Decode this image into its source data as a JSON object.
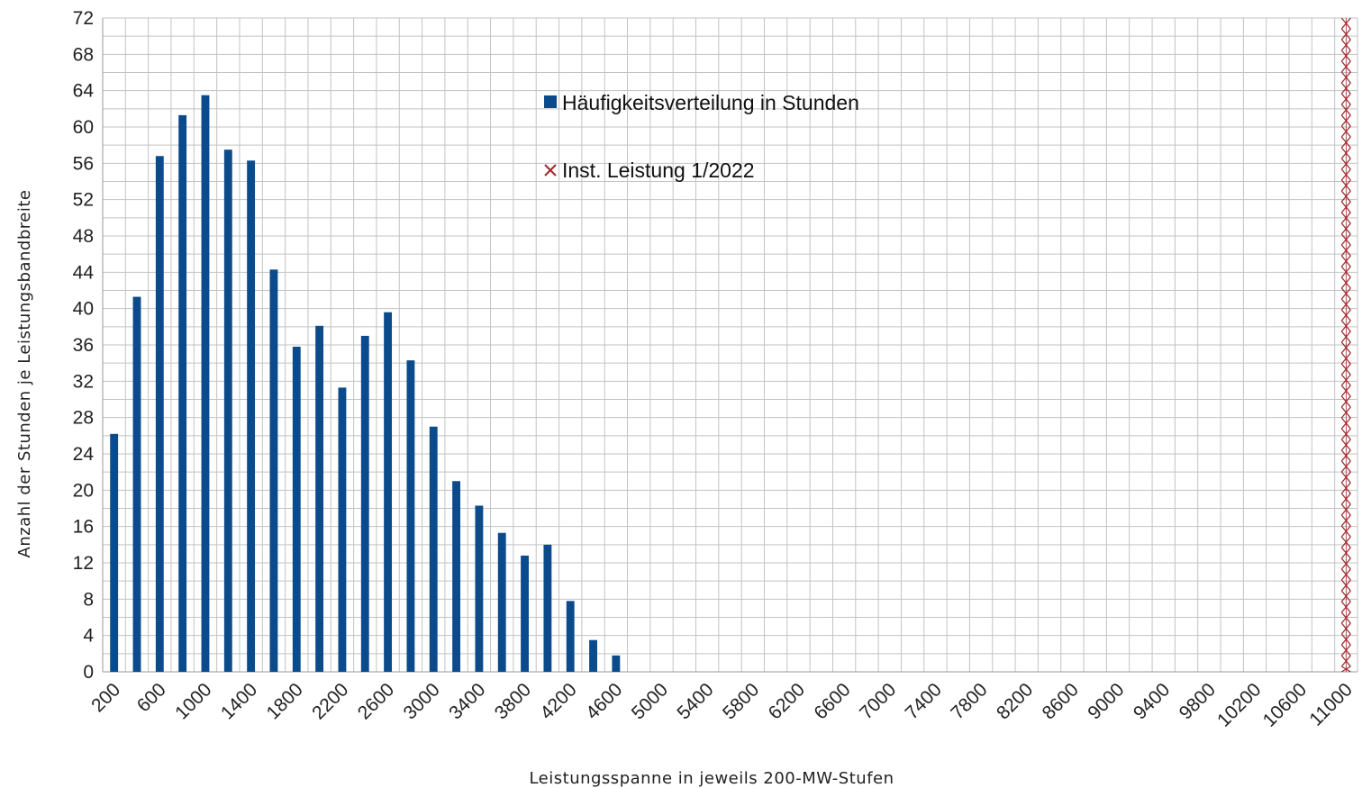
{
  "chart_data": {
    "type": "bar",
    "xlabel": "Leistungsspanne in jeweils 200-MW-Stufen",
    "ylabel": "Anzahl der Stunden je Leistungsbandbreite",
    "ylim": [
      0,
      72
    ],
    "yticks": [
      0,
      4,
      8,
      12,
      16,
      20,
      24,
      28,
      32,
      36,
      40,
      44,
      48,
      52,
      56,
      60,
      64,
      68,
      72
    ],
    "xlim": [
      200,
      11000
    ],
    "x_step": 200,
    "x_tick_labels": [
      "200",
      "600",
      "1000",
      "1400",
      "1800",
      "2200",
      "2600",
      "3000",
      "3400",
      "3800",
      "4200",
      "4600",
      "5000",
      "5400",
      "5800",
      "6200",
      "6600",
      "7000",
      "7400",
      "7800",
      "8200",
      "8600",
      "9000",
      "9400",
      "9800",
      "10200",
      "10600",
      "11000"
    ],
    "grid": true,
    "legend_position": "top-center",
    "series": [
      {
        "name": "Häufigkeitsverteilung in Stunden",
        "color": "#0b4a8b",
        "x": [
          200,
          400,
          600,
          800,
          1000,
          1200,
          1400,
          1600,
          1800,
          2000,
          2200,
          2400,
          2600,
          2800,
          3000,
          3200,
          3400,
          3600,
          3800,
          4000,
          4200,
          4400,
          4600
        ],
        "values": [
          26.2,
          41.3,
          56.8,
          61.3,
          63.5,
          57.5,
          56.3,
          44.3,
          35.8,
          38.1,
          31.3,
          37,
          39.6,
          34.3,
          27,
          21,
          18.3,
          15.3,
          12.8,
          14,
          7.8,
          3.5,
          1.8
        ]
      },
      {
        "name": "Inst. Leistung 1/2022",
        "color": "#a0282d",
        "type": "vertical-marker-line",
        "x": 11000
      }
    ]
  }
}
